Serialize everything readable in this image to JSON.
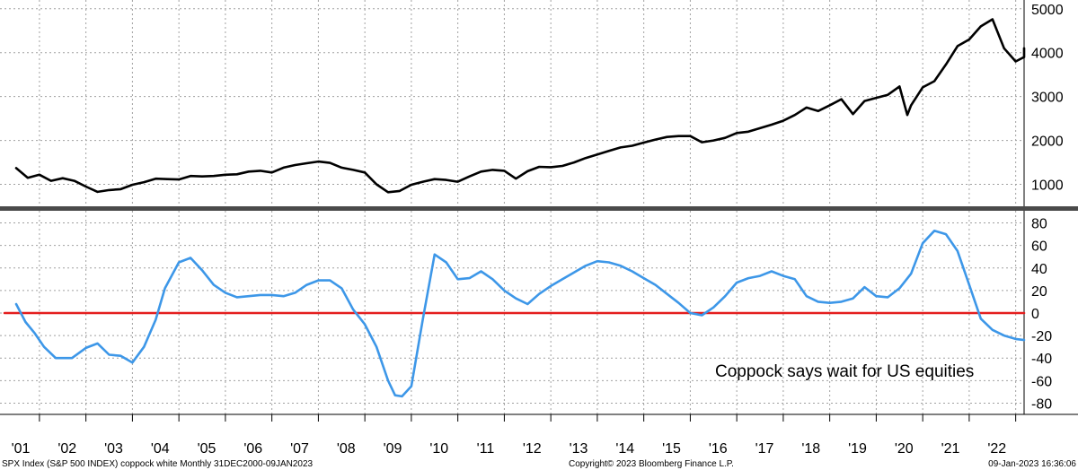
{
  "chart_data": [
    {
      "type": "line",
      "series": [
        {
          "name": "",
          "color": "#000000",
          "x": [
            2001.0,
            2001.25,
            2001.5,
            2001.75,
            2002.0,
            2002.25,
            2002.5,
            2002.75,
            2003.0,
            2003.25,
            2003.5,
            2003.75,
            2004.0,
            2004.25,
            2004.5,
            2004.75,
            2005.0,
            2005.25,
            2005.5,
            2005.75,
            2006.0,
            2006.25,
            2006.5,
            2006.75,
            2007.0,
            2007.25,
            2007.5,
            2007.75,
            2008.0,
            2008.25,
            2008.5,
            2008.75,
            2009.0,
            2009.25,
            2009.5,
            2009.75,
            2010.0,
            2010.25,
            2010.5,
            2010.75,
            2011.0,
            2011.25,
            2011.5,
            2011.75,
            2012.0,
            2012.25,
            2012.5,
            2012.75,
            2013.0,
            2013.25,
            2013.5,
            2013.75,
            2014.0,
            2014.25,
            2014.5,
            2014.75,
            2015.0,
            2015.25,
            2015.5,
            2015.75,
            2016.0,
            2016.25,
            2016.5,
            2016.75,
            2017.0,
            2017.25,
            2017.5,
            2017.75,
            2018.0,
            2018.25,
            2018.5,
            2018.75,
            2019.0,
            2019.25,
            2019.5,
            2019.75,
            2020.0,
            2020.17,
            2020.25,
            2020.5,
            2020.75,
            2021.0,
            2021.25,
            2021.5,
            2021.75,
            2022.0,
            2022.25,
            2022.5,
            2022.75,
            2022.9,
            2023.0
          ],
          "values": [
            1370,
            1150,
            1220,
            1080,
            1140,
            1080,
            950,
            830,
            870,
            890,
            990,
            1050,
            1130,
            1120,
            1110,
            1190,
            1180,
            1190,
            1220,
            1230,
            1290,
            1310,
            1270,
            1380,
            1440,
            1480,
            1520,
            1490,
            1380,
            1330,
            1270,
            1000,
            820,
            850,
            990,
            1060,
            1120,
            1100,
            1060,
            1180,
            1290,
            1330,
            1310,
            1130,
            1300,
            1400,
            1390,
            1420,
            1500,
            1600,
            1680,
            1760,
            1840,
            1880,
            1950,
            2020,
            2080,
            2100,
            2100,
            1960,
            2000,
            2060,
            2170,
            2200,
            2280,
            2360,
            2450,
            2580,
            2750,
            2670,
            2800,
            2940,
            2600,
            2900,
            2970,
            3040,
            3230,
            2580,
            2800,
            3210,
            3350,
            3730,
            4150,
            4300,
            4600,
            4760,
            4100,
            3800,
            3900,
            4100,
            3900
          ]
        }
      ],
      "ylim": [
        500,
        5200
      ],
      "yticks": [
        1000,
        2000,
        3000,
        4000,
        5000
      ]
    },
    {
      "type": "line",
      "series": [
        {
          "name": "",
          "color": "#3d97e8",
          "x": [
            2001.0,
            2001.2,
            2001.4,
            2001.6,
            2001.85,
            2002.2,
            2002.5,
            2002.75,
            2003.0,
            2003.25,
            2003.5,
            2003.75,
            2004.0,
            2004.2,
            2004.5,
            2004.75,
            2005.0,
            2005.25,
            2005.5,
            2005.75,
            2006.0,
            2006.25,
            2006.5,
            2006.75,
            2007.0,
            2007.25,
            2007.5,
            2007.75,
            2008.0,
            2008.25,
            2008.5,
            2008.75,
            2009.0,
            2009.15,
            2009.3,
            2009.5,
            2009.75,
            2010.0,
            2010.25,
            2010.5,
            2010.75,
            2011.0,
            2011.25,
            2011.5,
            2011.75,
            2012.0,
            2012.25,
            2012.5,
            2012.75,
            2013.0,
            2013.25,
            2013.5,
            2013.75,
            2014.0,
            2014.25,
            2014.5,
            2014.75,
            2015.0,
            2015.25,
            2015.5,
            2015.75,
            2016.0,
            2016.25,
            2016.5,
            2016.75,
            2017.0,
            2017.25,
            2017.5,
            2017.75,
            2018.0,
            2018.25,
            2018.5,
            2018.75,
            2019.0,
            2019.25,
            2019.5,
            2019.75,
            2020.0,
            2020.25,
            2020.5,
            2020.75,
            2021.0,
            2021.25,
            2021.5,
            2021.75,
            2022.0,
            2022.25,
            2022.5,
            2022.75,
            2022.9
          ],
          "values": [
            8,
            -8,
            -18,
            -30,
            -40,
            -40,
            -31,
            -27,
            -37,
            -38,
            -44,
            -30,
            -6,
            22,
            45,
            49,
            38,
            25,
            18,
            14,
            15,
            16,
            16,
            15,
            18,
            25,
            29,
            29,
            22,
            3,
            -10,
            -30,
            -60,
            -73,
            -74,
            -65,
            -5,
            52,
            45,
            30,
            31,
            37,
            30,
            20,
            13,
            8,
            17,
            24,
            30,
            36,
            42,
            46,
            45,
            42,
            37,
            31,
            25,
            17,
            9,
            0,
            -2,
            5,
            15,
            27,
            31,
            33,
            37,
            33,
            30,
            15,
            10,
            9,
            10,
            13,
            23,
            15,
            14,
            22,
            35,
            62,
            73,
            70,
            55,
            25,
            -5,
            -15,
            -20,
            -23,
            -24,
            -24
          ]
        },
        {
          "name": "",
          "color": "#e41e1e",
          "x": [
            2000.75,
            2023.2
          ],
          "values": [
            0,
            0
          ]
        }
      ],
      "ylim": [
        -90,
        90
      ],
      "yticks": [
        -80,
        -60,
        -40,
        -20,
        0,
        20,
        40,
        60,
        80
      ],
      "annotations": [
        "Coppock says wait for US equities"
      ]
    }
  ],
  "x_axis": {
    "tick_labels": [
      "'01",
      "'02",
      "'03",
      "'04",
      "'05",
      "'06",
      "'07",
      "'08",
      "'09",
      "'10",
      "'11",
      "'12",
      "'13",
      "'14",
      "'15",
      "'16",
      "'17",
      "'18",
      "'19",
      "'20",
      "'21",
      "'22"
    ],
    "years": [
      2001,
      2002,
      2003,
      2004,
      2005,
      2006,
      2007,
      2008,
      2009,
      2010,
      2011,
      2012,
      2013,
      2014,
      2015,
      2016,
      2017,
      2018,
      2019,
      2020,
      2021,
      2022
    ]
  },
  "footer": {
    "left": "SPX Index (S&P 500 INDEX) coppock white  Monthly 31DEC2000-09JAN2023",
    "center": "Copyright© 2023 Bloomberg Finance L.P.",
    "right": "09-Jan-2023 16:36:06"
  },
  "colors": {
    "price_line": "#000000",
    "coppock_line": "#3d97e8",
    "zero_line": "#e41e1e",
    "divider": "#4a4a4a",
    "grid": "#a0a0a0"
  }
}
